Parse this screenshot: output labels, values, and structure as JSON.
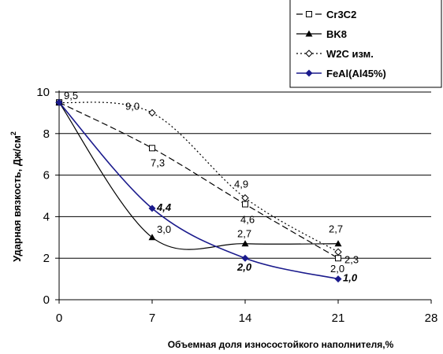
{
  "chart_data": {
    "type": "line",
    "xlabel": "Объемная доля износостойкого наполнителя,%",
    "ylabel": "Ударная вязкость,   Дж/см",
    "ylabel_sup": "2",
    "xlim": [
      0,
      28
    ],
    "ylim": [
      0,
      10
    ],
    "xticks": [
      "0",
      "7",
      "14",
      "21",
      "28"
    ],
    "yticks": [
      "0",
      "2",
      "4",
      "6",
      "8",
      "10"
    ],
    "grid": "horizontal",
    "legend_position": "top-right",
    "series": [
      {
        "name": "Cr3C2",
        "style": "dashed",
        "marker": "open-square",
        "color": "#000000",
        "x": [
          0,
          7,
          14,
          21
        ],
        "y": [
          9.5,
          7.3,
          4.6,
          2.0
        ],
        "labels": [
          "",
          "7,3",
          "4,6",
          "2,0"
        ]
      },
      {
        "name": "BK8",
        "style": "solid-thin",
        "marker": "triangle",
        "color": "#000000",
        "x": [
          0,
          7,
          14,
          21
        ],
        "y": [
          9.5,
          3.0,
          2.7,
          2.7
        ],
        "labels": [
          "",
          "3,0",
          "2,7",
          "2,7"
        ]
      },
      {
        "name": "W2C изм.",
        "style": "dotted",
        "marker": "open-diamond",
        "color": "#000000",
        "x": [
          0,
          7,
          14,
          21
        ],
        "y": [
          9.5,
          9.0,
          4.9,
          2.3
        ],
        "labels": [
          "9,5",
          "9,0",
          "4,9",
          "2,3"
        ]
      },
      {
        "name": "FeAl(Al45%)",
        "style": "solid",
        "marker": "diamond",
        "color": "#1a1a8c",
        "x": [
          0,
          7,
          14,
          21
        ],
        "y": [
          9.5,
          4.4,
          2.0,
          1.0
        ],
        "labels": [
          "",
          "4,4",
          "2,0",
          "1,0"
        ]
      }
    ]
  }
}
